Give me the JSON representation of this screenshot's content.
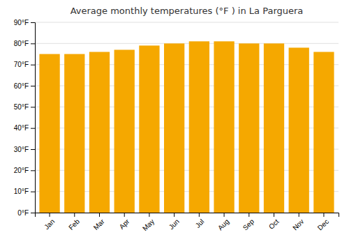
{
  "chart_data": {
    "type": "bar",
    "title": "Average monthly temperatures (°F ) in La Parguera",
    "categories": [
      "Jan",
      "Feb",
      "Mar",
      "Apr",
      "May",
      "Jun",
      "Jul",
      "Aug",
      "Sep",
      "Oct",
      "Nov",
      "Dec"
    ],
    "values": [
      75,
      75,
      76,
      77,
      79,
      80,
      81,
      81,
      80,
      80,
      78,
      76
    ],
    "color": "#F5A800",
    "ylim": [
      0,
      90
    ],
    "yticks": [
      {
        "value": 0,
        "label": "0°F"
      },
      {
        "value": 10,
        "label": "10°F"
      },
      {
        "value": 20,
        "label": "20°F"
      },
      {
        "value": 30,
        "label": "30°F"
      },
      {
        "value": 40,
        "label": "40°F"
      },
      {
        "value": 50,
        "label": "50°F"
      },
      {
        "value": 60,
        "label": "60°F"
      },
      {
        "value": 70,
        "label": "70°F"
      },
      {
        "value": 80,
        "label": "80°F"
      },
      {
        "value": 90,
        "label": "90°F"
      }
    ],
    "grid": true
  }
}
